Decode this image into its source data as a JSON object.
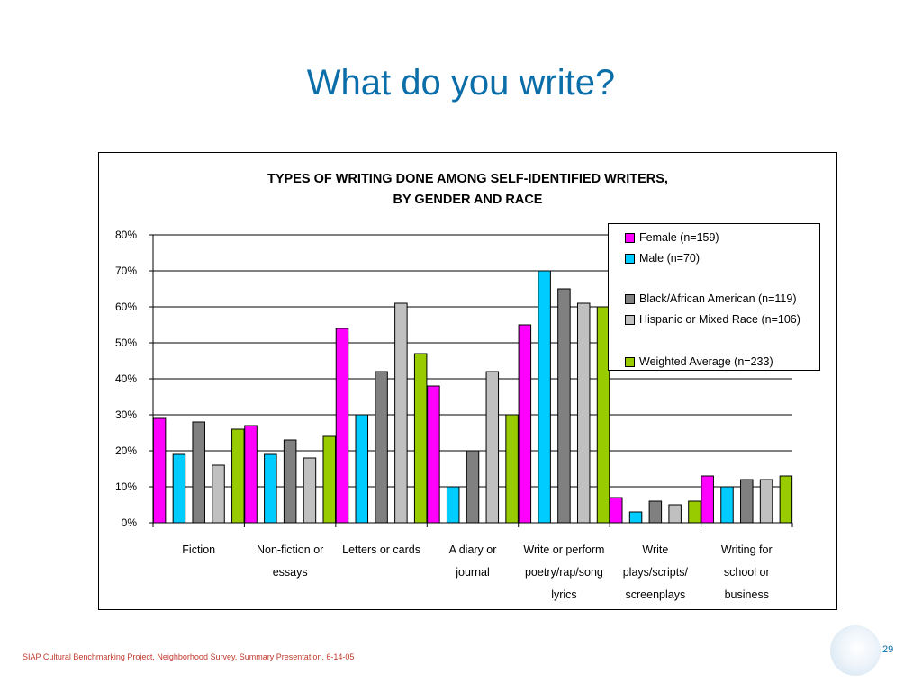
{
  "slide": {
    "title": "What do you write?",
    "footer": "SIAP Cultural Benchmarking Project, Neighborhood Survey, Summary Presentation, 6-14-05",
    "page_number": "29"
  },
  "chart_data": {
    "type": "bar",
    "title_lines": [
      "TYPES OF WRITING DONE AMONG SELF-IDENTIFIED WRITERS,",
      "BY GENDER AND RACE"
    ],
    "ylim": [
      0,
      80
    ],
    "yticks": [
      "0%",
      "10%",
      "20%",
      "30%",
      "40%",
      "50%",
      "60%",
      "70%",
      "80%"
    ],
    "grid": true,
    "legend_position": "top-right",
    "categories": [
      [
        "Fiction"
      ],
      [
        "Non-fiction or",
        "essays"
      ],
      [
        "Letters or cards"
      ],
      [
        "A diary or",
        "journal"
      ],
      [
        "Write or perform",
        "poetry/rap/song",
        "lyrics"
      ],
      [
        "Write",
        "plays/scripts/",
        "screenplays"
      ],
      [
        "Writing for",
        "school or",
        "business"
      ]
    ],
    "series": [
      {
        "name": "Female (n=159)",
        "color": "#ff00ff",
        "values": [
          29,
          27,
          54,
          38,
          55,
          7,
          13
        ]
      },
      {
        "name": "Male (n=70)",
        "color": "#00ccff",
        "values": [
          19,
          19,
          30,
          10,
          70,
          3,
          10
        ]
      },
      {
        "name": "Black/African American (n=119)",
        "color": "#808080",
        "values": [
          28,
          23,
          42,
          20,
          65,
          6,
          12
        ]
      },
      {
        "name": "Hispanic or Mixed Race (n=106)",
        "color": "#c0c0c0",
        "values": [
          16,
          18,
          61,
          42,
          61,
          5,
          12
        ]
      },
      {
        "name": "Weighted Average (n=233)",
        "color": "#99cc00",
        "values": [
          26,
          24,
          47,
          30,
          60,
          6,
          13
        ]
      }
    ]
  }
}
